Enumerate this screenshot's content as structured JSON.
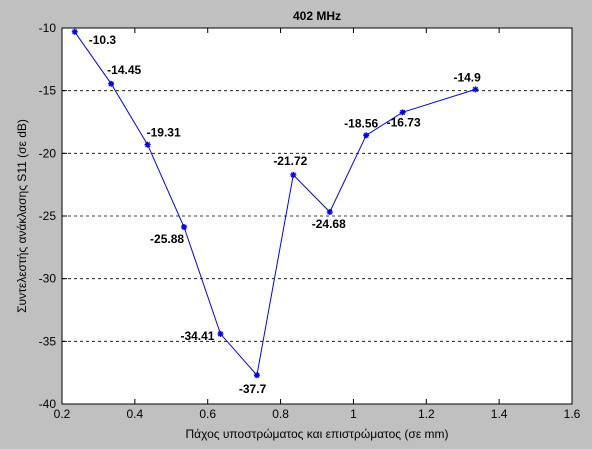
{
  "chart_data": {
    "type": "line",
    "title": "402 MHz",
    "xlabel": "Πάχος υποστρώματος και επιστρώματος (σε mm)",
    "ylabel": "Συντελεστής ανάκλασης S11 (σε dB)",
    "xlim": [
      0.2,
      1.6
    ],
    "ylim": [
      -40,
      -10
    ],
    "xticks": [
      "0.2",
      "0.4",
      "0.6",
      "0.8",
      "1",
      "1.2",
      "1.4",
      "1.6"
    ],
    "yticks": [
      "-10",
      "-15",
      "-20",
      "-25",
      "-30",
      "-35",
      "-40"
    ],
    "grid": "horizontal-dashed",
    "series": [
      {
        "color": "#0000ff",
        "x": [
          0.235,
          0.335,
          0.435,
          0.535,
          0.635,
          0.735,
          0.835,
          0.935,
          1.035,
          1.135,
          1.335
        ],
        "y": [
          -10.3,
          -14.45,
          -19.31,
          -25.88,
          -34.41,
          -37.7,
          -21.72,
          -24.68,
          -18.56,
          -16.73,
          -14.9
        ],
        "labels": [
          "-10.3",
          "-14.45",
          "-19.31",
          "-25.88",
          "-34.41",
          "-37.7",
          "-21.72",
          "-24.68",
          "-18.56",
          "-16.73",
          "-14.9"
        ]
      }
    ]
  }
}
